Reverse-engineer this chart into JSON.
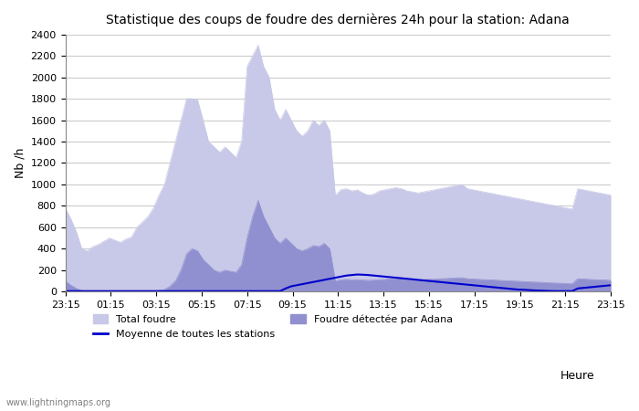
{
  "title": "Statistique des coups de foudre des dernières 24h pour la station: Adana",
  "ylabel": "Nb /h",
  "xlabel_right": "Heure",
  "watermark": "www.lightningmaps.org",
  "ylim": [
    0,
    2400
  ],
  "yticks": [
    0,
    200,
    400,
    600,
    800,
    1000,
    1200,
    1400,
    1600,
    1800,
    2000,
    2200,
    2400
  ],
  "xtick_labels": [
    "23:15",
    "01:15",
    "03:15",
    "05:15",
    "07:15",
    "09:15",
    "11:15",
    "13:15",
    "15:15",
    "17:15",
    "19:15",
    "21:15",
    "23:15"
  ],
  "color_total": "#c8c8e8",
  "color_adana": "#9090d0",
  "color_moyenne": "#0000cc",
  "bg_color": "#ffffff",
  "grid_color": "#cccccc",
  "legend_labels": [
    "Total foudre",
    "Moyenne de toutes les stations",
    "Foudre détectée par Adana"
  ],
  "total_foudre": [
    780,
    680,
    560,
    400,
    380,
    420,
    440,
    470,
    500,
    480,
    460,
    490,
    510,
    600,
    650,
    700,
    780,
    900,
    1000,
    1200,
    1400,
    1600,
    1800,
    1800,
    1790,
    1600,
    1400,
    1350,
    1300,
    1350,
    1300,
    1250,
    1400,
    2100,
    2200,
    2300,
    2100,
    2000,
    1700,
    1600,
    1700,
    1600,
    1500,
    1450,
    1500,
    1600,
    1550,
    1600,
    1500,
    900,
    950,
    960,
    940,
    950,
    920,
    900,
    910,
    940,
    950,
    960,
    970,
    960,
    940,
    930,
    920,
    930,
    940,
    950,
    960,
    970,
    980,
    990,
    1000,
    960,
    950,
    940,
    930,
    920,
    910,
    900,
    890,
    880,
    870,
    860,
    850,
    840,
    830,
    820,
    810,
    800,
    790,
    780,
    770,
    960,
    950,
    940,
    930,
    920,
    910,
    900
  ],
  "adana_foudre": [
    100,
    60,
    30,
    10,
    5,
    5,
    5,
    5,
    5,
    5,
    5,
    5,
    5,
    5,
    5,
    5,
    5,
    10,
    20,
    50,
    100,
    200,
    350,
    400,
    380,
    300,
    250,
    200,
    180,
    200,
    190,
    180,
    250,
    500,
    700,
    850,
    700,
    600,
    500,
    450,
    500,
    450,
    400,
    380,
    400,
    430,
    420,
    450,
    400,
    100,
    110,
    115,
    110,
    112,
    108,
    105,
    108,
    112,
    115,
    118,
    120,
    118,
    115,
    112,
    110,
    112,
    115,
    118,
    120,
    122,
    125,
    128,
    130,
    120,
    118,
    115,
    112,
    110,
    108,
    105,
    102,
    100,
    98,
    95,
    92,
    90,
    88,
    85,
    82,
    80,
    78,
    75,
    73,
    120,
    118,
    115,
    112,
    110,
    108,
    105
  ],
  "moyenne": [
    5,
    5,
    5,
    5,
    5,
    5,
    5,
    5,
    5,
    5,
    5,
    5,
    5,
    5,
    5,
    5,
    5,
    5,
    5,
    5,
    5,
    5,
    5,
    5,
    5,
    5,
    5,
    5,
    5,
    5,
    5,
    5,
    5,
    5,
    5,
    5,
    5,
    5,
    5,
    5,
    30,
    50,
    60,
    70,
    80,
    90,
    100,
    110,
    120,
    130,
    140,
    150,
    155,
    160,
    158,
    155,
    150,
    145,
    140,
    135,
    130,
    125,
    120,
    115,
    110,
    105,
    100,
    95,
    90,
    85,
    80,
    75,
    70,
    65,
    60,
    55,
    50,
    45,
    40,
    35,
    30,
    25,
    20,
    18,
    15,
    12,
    10,
    8,
    6,
    5,
    5,
    5,
    5,
    30,
    35,
    40,
    45,
    50,
    55,
    60
  ]
}
